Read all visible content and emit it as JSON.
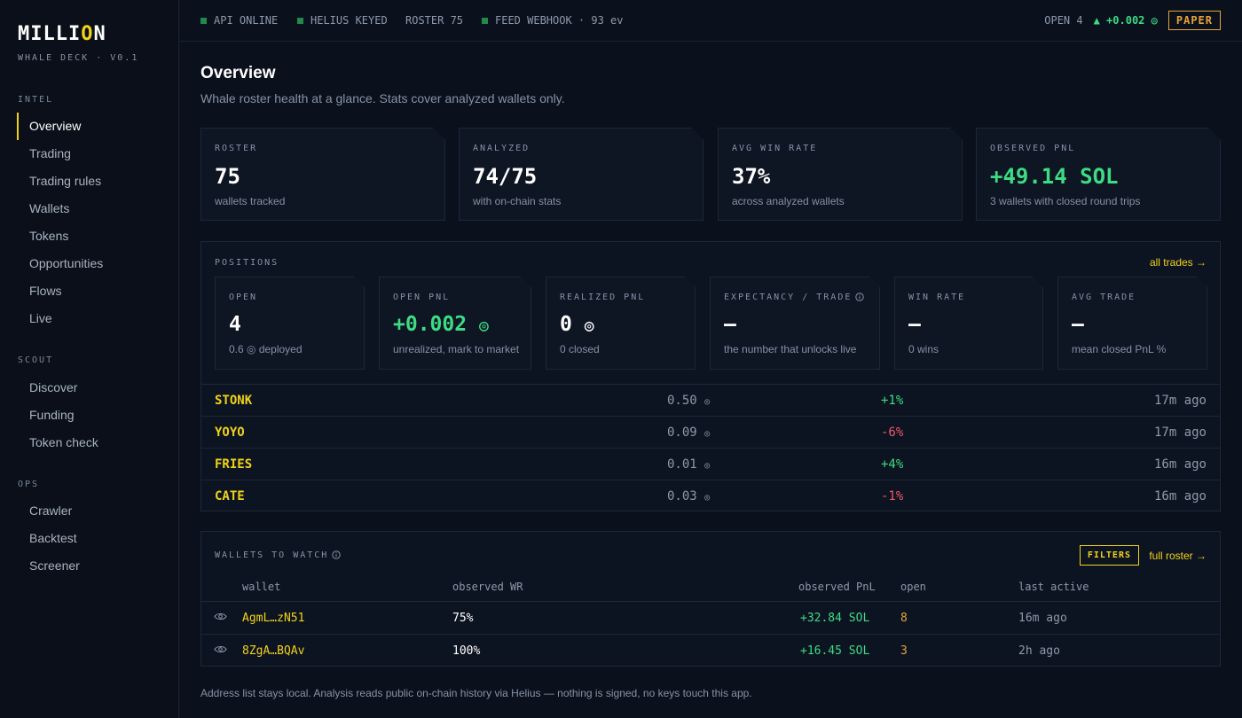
{
  "brand": {
    "logo_pre": "MILLI",
    "logo_accent": "O",
    "logo_post": "N",
    "subtitle": "WHALE DECK · V0.1"
  },
  "nav": {
    "intel_label": "INTEL",
    "intel_items": [
      "Overview",
      "Trading",
      "Trading rules",
      "Wallets",
      "Tokens",
      "Opportunities",
      "Flows",
      "Live"
    ],
    "scout_label": "SCOUT",
    "scout_items": [
      "Discover",
      "Funding",
      "Token check"
    ],
    "ops_label": "OPS",
    "ops_items": [
      "Crawler",
      "Backtest",
      "Screener"
    ],
    "active": "Overview"
  },
  "topbar": {
    "api": "API ONLINE",
    "helius": "HELIUS KEYED",
    "roster": "ROSTER 75",
    "feed": "FEED WEBHOOK · 93 ev",
    "open": "OPEN 4",
    "pnl": "▲ +0.002",
    "mode": "PAPER"
  },
  "page": {
    "title": "Overview",
    "subtitle": "Whale roster health at a glance. Stats cover analyzed wallets only."
  },
  "stats": [
    {
      "label": "ROSTER",
      "value": "75",
      "sub": "wallets tracked"
    },
    {
      "label": "ANALYZED",
      "value": "74/75",
      "sub": "with on-chain stats"
    },
    {
      "label": "AVG WIN RATE",
      "value": "37%",
      "sub": "across analyzed wallets"
    },
    {
      "label": "OBSERVED PNL",
      "value": "+49.14 SOL",
      "sub": "3 wallets with closed round trips"
    }
  ],
  "positions": {
    "title": "POSITIONS",
    "link": "all trades →",
    "metrics": [
      {
        "label": "OPEN",
        "value": "4",
        "sub": "0.6 ◎ deployed"
      },
      {
        "label": "OPEN PNL",
        "value": "+0.002",
        "sub": "unrealized, mark to market"
      },
      {
        "label": "REALIZED PNL",
        "value": "0",
        "sub": "0 closed"
      },
      {
        "label": "EXPECTANCY / TRADE",
        "value": "—",
        "sub": "the number that unlocks live"
      },
      {
        "label": "WIN RATE",
        "value": "—",
        "sub": "0 wins"
      },
      {
        "label": "AVG TRADE",
        "value": "—",
        "sub": "mean closed PnL %"
      }
    ],
    "rows": [
      {
        "symbol": "STONK",
        "amount": "0.50",
        "change": "+1%",
        "age": "17m ago"
      },
      {
        "symbol": "YOYO",
        "amount": "0.09",
        "change": "-6%",
        "age": "17m ago"
      },
      {
        "symbol": "FRIES",
        "amount": "0.01",
        "change": "+4%",
        "age": "16m ago"
      },
      {
        "symbol": "CATE",
        "amount": "0.03",
        "change": "-1%",
        "age": "16m ago"
      }
    ]
  },
  "watch": {
    "title": "WALLETS TO WATCH",
    "filters": "FILTERS",
    "link": "full roster →",
    "headers": {
      "wallet": "wallet",
      "wr": "observed WR",
      "pnl": "observed PnL",
      "open": "open",
      "last": "last active"
    },
    "rows": [
      {
        "wallet": "AgmL…zN51",
        "wr": "75%",
        "pnl": "+32.84 SOL",
        "open": "8",
        "last": "16m ago"
      },
      {
        "wallet": "8ZgA…BQAv",
        "wr": "100%",
        "pnl": "+16.45 SOL",
        "open": "3",
        "last": "2h ago"
      }
    ]
  },
  "footer": "Address list stays local. Analysis reads public on-chain history via Helius — nothing is signed, no keys touch this app.",
  "colors": {
    "accent": "#f0d21a",
    "positive": "#3ddc84",
    "negative": "#f0566b",
    "warning": "#e8a33a"
  }
}
